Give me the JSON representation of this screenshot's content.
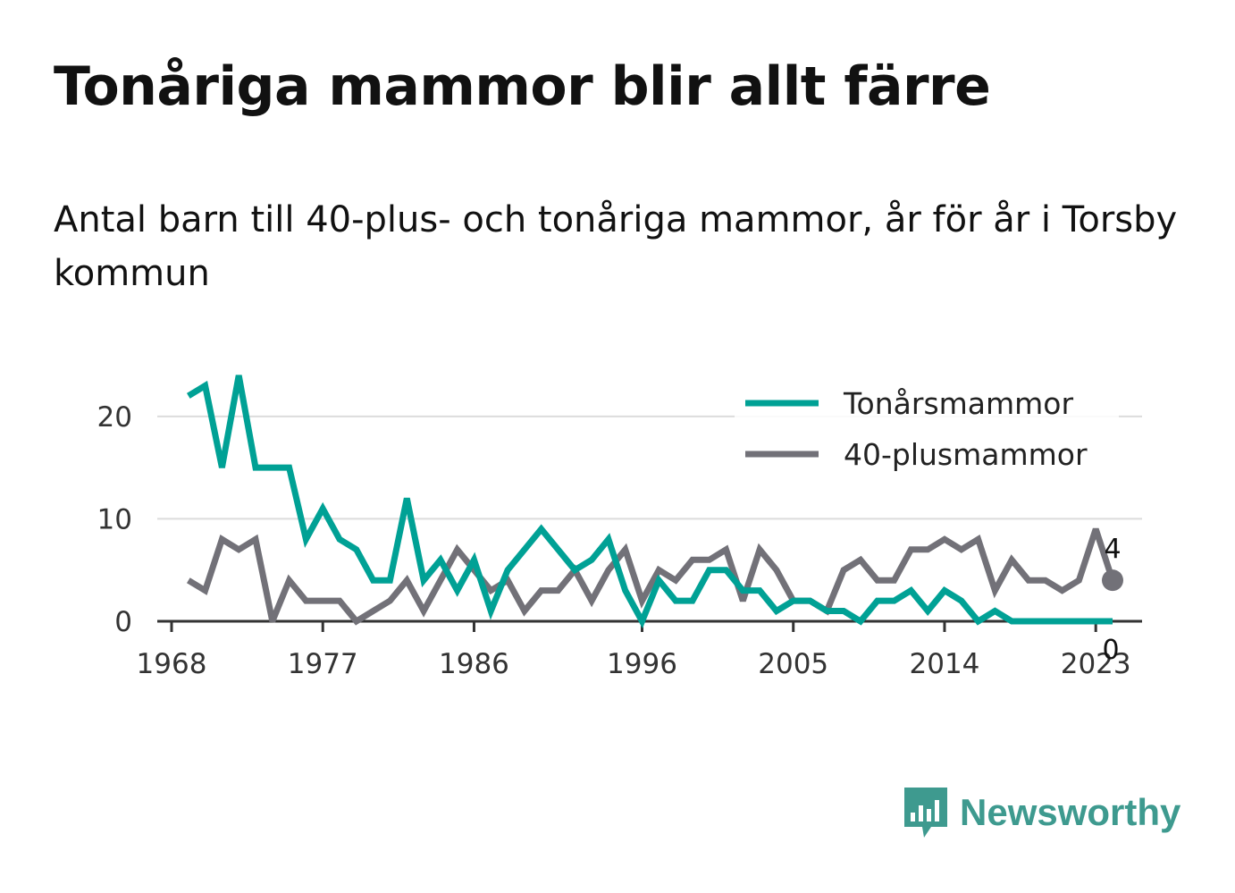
{
  "title": "Tonåriga mammor blir allt färre",
  "subtitle": "Antal barn till 40-plus- och tonåriga mammor, år för år i Torsby kommun",
  "brand": {
    "name": "Newsworthy",
    "icon": "newsworthy-logo-icon",
    "color": "#3e9a8f"
  },
  "chart_data": {
    "type": "line",
    "title": "Tonåriga mammor blir allt färre",
    "subtitle": "Antal barn till 40-plus- och tonåriga mammor, år för år i Torsby kommun",
    "xlabel": "",
    "ylabel": "",
    "x": [
      1969,
      1970,
      1971,
      1972,
      1973,
      1974,
      1975,
      1976,
      1977,
      1978,
      1979,
      1980,
      1981,
      1982,
      1983,
      1984,
      1985,
      1986,
      1987,
      1988,
      1989,
      1990,
      1991,
      1992,
      1993,
      1994,
      1995,
      1996,
      1997,
      1998,
      1999,
      2000,
      2001,
      2002,
      2003,
      2004,
      2005,
      2006,
      2007,
      2008,
      2009,
      2010,
      2011,
      2012,
      2013,
      2014,
      2015,
      2016,
      2017,
      2018,
      2019,
      2020,
      2021,
      2022,
      2023,
      2024
    ],
    "xticks": [
      1968,
      1977,
      1986,
      1996,
      2005,
      2014,
      2023
    ],
    "xlim": [
      1968,
      2024
    ],
    "yticks": [
      0,
      10,
      20
    ],
    "ylim": [
      0,
      24
    ],
    "grid": true,
    "legend": "top-right",
    "series": [
      {
        "name": "Tonårsmammor",
        "color": "#00a195",
        "values": [
          22,
          23,
          15,
          24,
          15,
          15,
          15,
          8,
          11,
          8,
          7,
          4,
          4,
          12,
          4,
          6,
          3,
          6,
          1,
          5,
          7,
          9,
          7,
          5,
          6,
          8,
          3,
          0,
          4,
          2,
          2,
          5,
          5,
          3,
          3,
          1,
          2,
          2,
          1,
          1,
          0,
          2,
          2,
          3,
          1,
          3,
          2,
          0,
          1,
          0,
          0,
          0,
          0,
          0,
          0,
          0
        ],
        "end_label": "0"
      },
      {
        "name": "40-plusmammor",
        "color": "#727178",
        "values": [
          4,
          3,
          8,
          7,
          8,
          0,
          4,
          2,
          2,
          2,
          0,
          1,
          2,
          4,
          1,
          4,
          7,
          5,
          3,
          4,
          1,
          3,
          3,
          5,
          2,
          5,
          7,
          2,
          5,
          4,
          6,
          6,
          7,
          2,
          7,
          5,
          2,
          2,
          1,
          5,
          6,
          4,
          4,
          7,
          7,
          8,
          7,
          8,
          3,
          6,
          4,
          4,
          3,
          4,
          9,
          4
        ],
        "end_label": "4"
      }
    ]
  }
}
